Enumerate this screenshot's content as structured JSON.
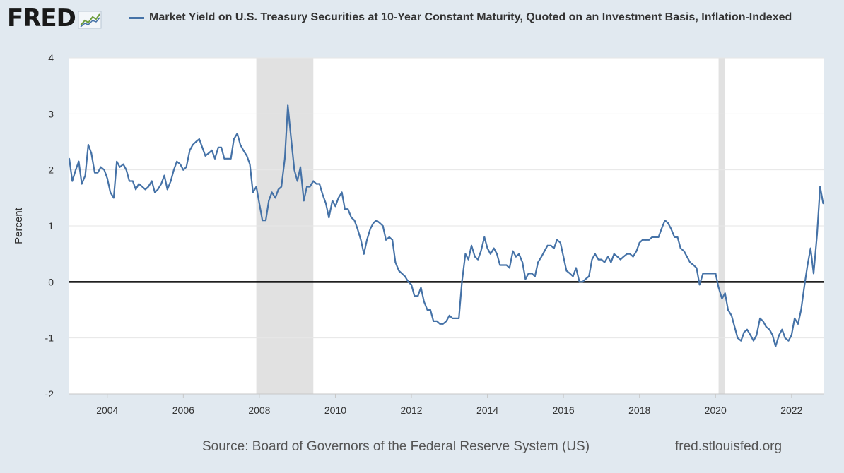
{
  "brand": {
    "name": "FRED",
    "icon": "fred-chart-icon"
  },
  "colors": {
    "series": "#4572a7",
    "recession": "#e1e1e1",
    "zero_line": "#000000",
    "grid": "#e6e6e6",
    "background": "#e1e9f0"
  },
  "chart_data": {
    "type": "line",
    "title": "Market Yield on U.S. Treasury Securities at 10-Year Constant Maturity, Quoted on an Investment Basis, Inflation-Indexed",
    "xlabel": "",
    "ylabel": "Percent",
    "xlim": [
      2003.0,
      2022.84
    ],
    "ylim": [
      -2,
      4
    ],
    "y_ticks": [
      -2,
      -1,
      0,
      1,
      2,
      3,
      4
    ],
    "x_ticks": [
      2004,
      2006,
      2008,
      2010,
      2012,
      2014,
      2016,
      2018,
      2020,
      2022
    ],
    "grid": true,
    "legend": "top-left",
    "recessions": [
      [
        2007.92,
        2009.42
      ],
      [
        2020.08,
        2020.25
      ]
    ],
    "series": [
      {
        "name": "Market Yield on U.S. Treasury Securities at 10-Year Constant Maturity, Quoted on an Investment Basis, Inflation-Indexed",
        "points": [
          [
            2003.0,
            2.2
          ],
          [
            2003.08,
            1.8
          ],
          [
            2003.17,
            2.0
          ],
          [
            2003.25,
            2.15
          ],
          [
            2003.33,
            1.75
          ],
          [
            2003.42,
            1.9
          ],
          [
            2003.5,
            2.45
          ],
          [
            2003.58,
            2.3
          ],
          [
            2003.67,
            1.95
          ],
          [
            2003.75,
            1.95
          ],
          [
            2003.83,
            2.05
          ],
          [
            2003.92,
            2.0
          ],
          [
            2004.0,
            1.85
          ],
          [
            2004.08,
            1.6
          ],
          [
            2004.17,
            1.5
          ],
          [
            2004.25,
            2.15
          ],
          [
            2004.33,
            2.05
          ],
          [
            2004.42,
            2.1
          ],
          [
            2004.5,
            2.0
          ],
          [
            2004.58,
            1.8
          ],
          [
            2004.67,
            1.8
          ],
          [
            2004.75,
            1.65
          ],
          [
            2004.83,
            1.75
          ],
          [
            2004.92,
            1.7
          ],
          [
            2005.0,
            1.65
          ],
          [
            2005.08,
            1.7
          ],
          [
            2005.17,
            1.8
          ],
          [
            2005.25,
            1.6
          ],
          [
            2005.33,
            1.65
          ],
          [
            2005.42,
            1.75
          ],
          [
            2005.5,
            1.9
          ],
          [
            2005.58,
            1.65
          ],
          [
            2005.67,
            1.8
          ],
          [
            2005.75,
            2.0
          ],
          [
            2005.83,
            2.15
          ],
          [
            2005.92,
            2.1
          ],
          [
            2006.0,
            2.0
          ],
          [
            2006.08,
            2.05
          ],
          [
            2006.17,
            2.35
          ],
          [
            2006.25,
            2.45
          ],
          [
            2006.33,
            2.5
          ],
          [
            2006.42,
            2.55
          ],
          [
            2006.5,
            2.4
          ],
          [
            2006.58,
            2.25
          ],
          [
            2006.67,
            2.3
          ],
          [
            2006.75,
            2.35
          ],
          [
            2006.83,
            2.2
          ],
          [
            2006.92,
            2.4
          ],
          [
            2007.0,
            2.4
          ],
          [
            2007.08,
            2.2
          ],
          [
            2007.17,
            2.2
          ],
          [
            2007.25,
            2.2
          ],
          [
            2007.33,
            2.55
          ],
          [
            2007.42,
            2.65
          ],
          [
            2007.5,
            2.45
          ],
          [
            2007.58,
            2.35
          ],
          [
            2007.67,
            2.25
          ],
          [
            2007.75,
            2.1
          ],
          [
            2007.83,
            1.6
          ],
          [
            2007.92,
            1.7
          ],
          [
            2008.0,
            1.4
          ],
          [
            2008.08,
            1.1
          ],
          [
            2008.17,
            1.1
          ],
          [
            2008.25,
            1.45
          ],
          [
            2008.33,
            1.6
          ],
          [
            2008.42,
            1.5
          ],
          [
            2008.5,
            1.65
          ],
          [
            2008.58,
            1.7
          ],
          [
            2008.67,
            2.2
          ],
          [
            2008.75,
            3.15
          ],
          [
            2008.83,
            2.6
          ],
          [
            2008.92,
            2.0
          ],
          [
            2009.0,
            1.8
          ],
          [
            2009.08,
            2.05
          ],
          [
            2009.17,
            1.45
          ],
          [
            2009.25,
            1.7
          ],
          [
            2009.33,
            1.7
          ],
          [
            2009.42,
            1.8
          ],
          [
            2009.5,
            1.75
          ],
          [
            2009.58,
            1.75
          ],
          [
            2009.67,
            1.55
          ],
          [
            2009.75,
            1.4
          ],
          [
            2009.83,
            1.15
          ],
          [
            2009.92,
            1.45
          ],
          [
            2010.0,
            1.35
          ],
          [
            2010.08,
            1.5
          ],
          [
            2010.17,
            1.6
          ],
          [
            2010.25,
            1.3
          ],
          [
            2010.33,
            1.3
          ],
          [
            2010.42,
            1.15
          ],
          [
            2010.5,
            1.1
          ],
          [
            2010.58,
            0.95
          ],
          [
            2010.67,
            0.75
          ],
          [
            2010.75,
            0.5
          ],
          [
            2010.83,
            0.75
          ],
          [
            2010.92,
            0.95
          ],
          [
            2011.0,
            1.05
          ],
          [
            2011.08,
            1.1
          ],
          [
            2011.17,
            1.05
          ],
          [
            2011.25,
            1.0
          ],
          [
            2011.33,
            0.75
          ],
          [
            2011.42,
            0.8
          ],
          [
            2011.5,
            0.75
          ],
          [
            2011.58,
            0.35
          ],
          [
            2011.67,
            0.2
          ],
          [
            2011.75,
            0.15
          ],
          [
            2011.83,
            0.1
          ],
          [
            2011.92,
            0.0
          ],
          [
            2012.0,
            -0.05
          ],
          [
            2012.08,
            -0.25
          ],
          [
            2012.17,
            -0.25
          ],
          [
            2012.25,
            -0.1
          ],
          [
            2012.33,
            -0.35
          ],
          [
            2012.42,
            -0.5
          ],
          [
            2012.5,
            -0.5
          ],
          [
            2012.58,
            -0.7
          ],
          [
            2012.67,
            -0.7
          ],
          [
            2012.75,
            -0.75
          ],
          [
            2012.83,
            -0.75
          ],
          [
            2012.92,
            -0.7
          ],
          [
            2013.0,
            -0.6
          ],
          [
            2013.08,
            -0.65
          ],
          [
            2013.17,
            -0.65
          ],
          [
            2013.25,
            -0.65
          ],
          [
            2013.33,
            0.0
          ],
          [
            2013.42,
            0.5
          ],
          [
            2013.5,
            0.4
          ],
          [
            2013.58,
            0.65
          ],
          [
            2013.67,
            0.45
          ],
          [
            2013.75,
            0.4
          ],
          [
            2013.83,
            0.55
          ],
          [
            2013.92,
            0.8
          ],
          [
            2014.0,
            0.6
          ],
          [
            2014.08,
            0.5
          ],
          [
            2014.17,
            0.6
          ],
          [
            2014.25,
            0.5
          ],
          [
            2014.33,
            0.3
          ],
          [
            2014.42,
            0.3
          ],
          [
            2014.5,
            0.3
          ],
          [
            2014.58,
            0.25
          ],
          [
            2014.67,
            0.55
          ],
          [
            2014.75,
            0.45
          ],
          [
            2014.83,
            0.5
          ],
          [
            2014.92,
            0.35
          ],
          [
            2015.0,
            0.05
          ],
          [
            2015.08,
            0.15
          ],
          [
            2015.17,
            0.15
          ],
          [
            2015.25,
            0.1
          ],
          [
            2015.33,
            0.35
          ],
          [
            2015.42,
            0.45
          ],
          [
            2015.5,
            0.55
          ],
          [
            2015.58,
            0.65
          ],
          [
            2015.67,
            0.65
          ],
          [
            2015.75,
            0.6
          ],
          [
            2015.83,
            0.75
          ],
          [
            2015.92,
            0.7
          ],
          [
            2016.0,
            0.45
          ],
          [
            2016.08,
            0.2
          ],
          [
            2016.17,
            0.15
          ],
          [
            2016.25,
            0.1
          ],
          [
            2016.33,
            0.25
          ],
          [
            2016.42,
            0.0
          ],
          [
            2016.5,
            0.0
          ],
          [
            2016.58,
            0.05
          ],
          [
            2016.67,
            0.1
          ],
          [
            2016.75,
            0.4
          ],
          [
            2016.83,
            0.5
          ],
          [
            2016.92,
            0.4
          ],
          [
            2017.0,
            0.4
          ],
          [
            2017.08,
            0.35
          ],
          [
            2017.17,
            0.45
          ],
          [
            2017.25,
            0.35
          ],
          [
            2017.33,
            0.5
          ],
          [
            2017.42,
            0.45
          ],
          [
            2017.5,
            0.4
          ],
          [
            2017.58,
            0.45
          ],
          [
            2017.67,
            0.5
          ],
          [
            2017.75,
            0.5
          ],
          [
            2017.83,
            0.45
          ],
          [
            2017.92,
            0.55
          ],
          [
            2018.0,
            0.7
          ],
          [
            2018.08,
            0.75
          ],
          [
            2018.17,
            0.75
          ],
          [
            2018.25,
            0.75
          ],
          [
            2018.33,
            0.8
          ],
          [
            2018.42,
            0.8
          ],
          [
            2018.5,
            0.8
          ],
          [
            2018.58,
            0.95
          ],
          [
            2018.67,
            1.1
          ],
          [
            2018.75,
            1.05
          ],
          [
            2018.83,
            0.95
          ],
          [
            2018.92,
            0.8
          ],
          [
            2019.0,
            0.8
          ],
          [
            2019.08,
            0.6
          ],
          [
            2019.17,
            0.55
          ],
          [
            2019.25,
            0.45
          ],
          [
            2019.33,
            0.35
          ],
          [
            2019.42,
            0.3
          ],
          [
            2019.5,
            0.25
          ],
          [
            2019.58,
            -0.05
          ],
          [
            2019.67,
            0.15
          ],
          [
            2019.75,
            0.15
          ],
          [
            2019.83,
            0.15
          ],
          [
            2019.92,
            0.15
          ],
          [
            2020.0,
            0.15
          ],
          [
            2020.08,
            -0.1
          ],
          [
            2020.17,
            -0.3
          ],
          [
            2020.25,
            -0.2
          ],
          [
            2020.33,
            -0.5
          ],
          [
            2020.42,
            -0.6
          ],
          [
            2020.5,
            -0.8
          ],
          [
            2020.58,
            -1.0
          ],
          [
            2020.67,
            -1.05
          ],
          [
            2020.75,
            -0.9
          ],
          [
            2020.83,
            -0.85
          ],
          [
            2020.92,
            -0.95
          ],
          [
            2021.0,
            -1.05
          ],
          [
            2021.08,
            -0.95
          ],
          [
            2021.17,
            -0.65
          ],
          [
            2021.25,
            -0.7
          ],
          [
            2021.33,
            -0.8
          ],
          [
            2021.42,
            -0.85
          ],
          [
            2021.5,
            -0.95
          ],
          [
            2021.58,
            -1.15
          ],
          [
            2021.67,
            -0.95
          ],
          [
            2021.75,
            -0.85
          ],
          [
            2021.83,
            -1.0
          ],
          [
            2021.92,
            -1.05
          ],
          [
            2022.0,
            -0.95
          ],
          [
            2022.08,
            -0.65
          ],
          [
            2022.17,
            -0.75
          ],
          [
            2022.25,
            -0.5
          ],
          [
            2022.33,
            -0.1
          ],
          [
            2022.42,
            0.3
          ],
          [
            2022.5,
            0.6
          ],
          [
            2022.58,
            0.15
          ],
          [
            2022.67,
            0.85
          ],
          [
            2022.75,
            1.7
          ],
          [
            2022.83,
            1.4
          ]
        ]
      }
    ]
  },
  "footer": {
    "source": "Source: Board of Governors of the Federal Reserve System (US)",
    "url": "fred.stlouisfed.org"
  }
}
